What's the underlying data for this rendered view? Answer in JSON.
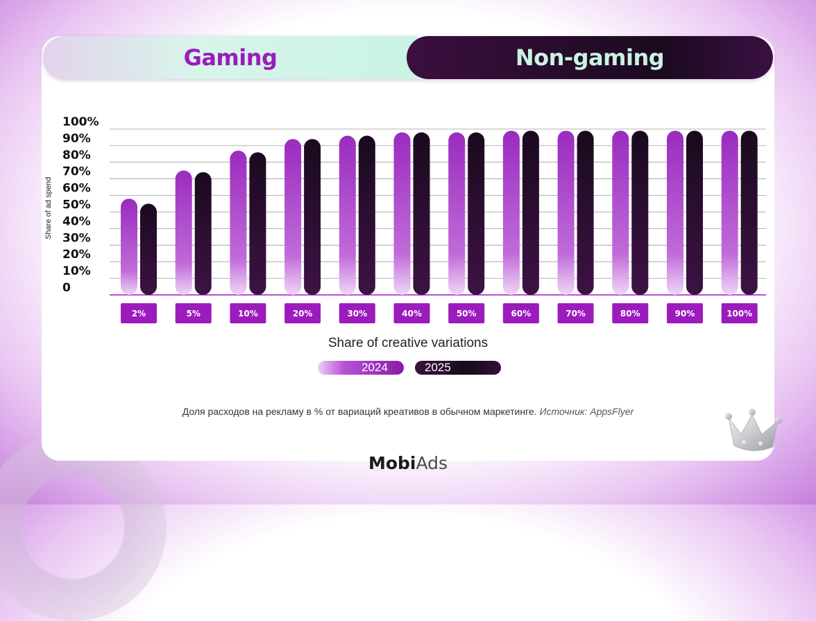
{
  "tabs": {
    "gaming": "Gaming",
    "non_gaming": "Non-gaming",
    "active": "non_gaming"
  },
  "chart_data": {
    "type": "bar",
    "ylabel": "Share of ad spend",
    "xlabel": "Share of creative variations",
    "y_ticks": [
      "0",
      "10%",
      "20%",
      "30%",
      "40%",
      "50%",
      "60%",
      "70%",
      "80%",
      "90%",
      "100%"
    ],
    "ylim": [
      0,
      100
    ],
    "categories": [
      "2%",
      "5%",
      "10%",
      "20%",
      "30%",
      "40%",
      "50%",
      "60%",
      "70%",
      "80%",
      "90%",
      "100%"
    ],
    "series": [
      {
        "name": "2024",
        "color": "#9b2dc0",
        "values": [
          58,
          75,
          87,
          94,
          96,
          98,
          98,
          99,
          99,
          99,
          99,
          99
        ]
      },
      {
        "name": "2025",
        "color": "#1c0b20",
        "values": [
          55,
          74,
          86,
          94,
          96,
          98,
          98,
          99,
          99,
          99,
          99,
          99
        ]
      }
    ],
    "grid": true
  },
  "legend": [
    "2024",
    "2025"
  ],
  "caption": {
    "text": "Доля расходов на рекламу в % от вариаций креативов в обычном маркетинге.",
    "source": "Источник: AppsFlyer"
  },
  "logo": {
    "part1": "Mobi",
    "part2": "Ads"
  },
  "colors": {
    "accent": "#9b1bbd",
    "dark": "#1c0b20",
    "mint": "#c9f3e4",
    "label_bg": "#9b1bbd"
  }
}
